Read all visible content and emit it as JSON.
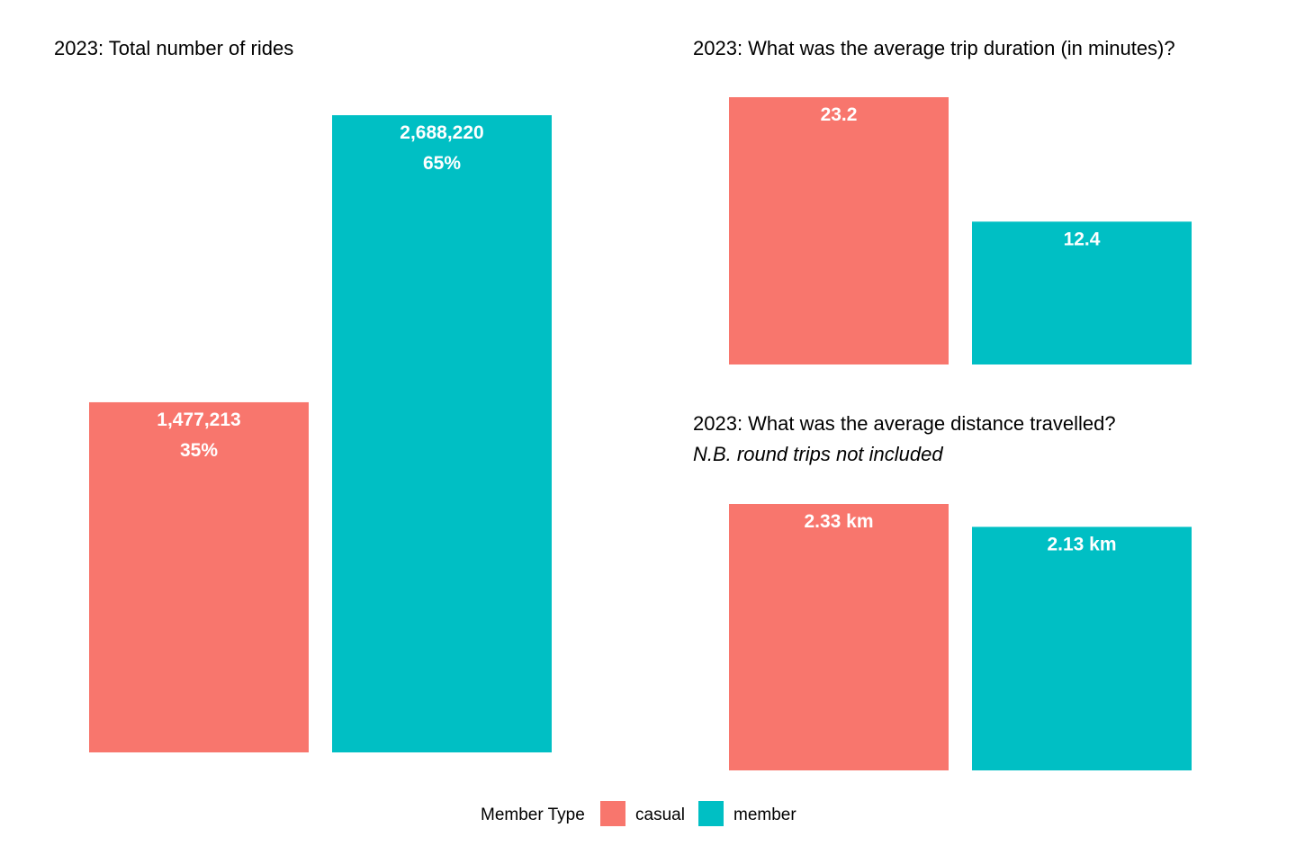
{
  "colors": {
    "casual": "#F8766D",
    "member": "#00BFC4"
  },
  "legend": {
    "title": "Member Type",
    "items": [
      {
        "name": "casual",
        "color": "#F8766D"
      },
      {
        "name": "member",
        "color": "#00BFC4"
      }
    ]
  },
  "chart_data": [
    {
      "type": "bar",
      "title": "2023: Total number of rides",
      "subtitle": "",
      "categories": [
        "casual",
        "member"
      ],
      "values": [
        1477213,
        2688220
      ],
      "labels": [
        [
          "1,477,213",
          "35%"
        ],
        [
          "2,688,220",
          "65%"
        ]
      ],
      "ylim": [
        0,
        2688220
      ],
      "grid": false,
      "xlabel": "",
      "ylabel": ""
    },
    {
      "type": "bar",
      "title": "2023: What was the average trip duration (in minutes)?",
      "subtitle": "",
      "categories": [
        "casual",
        "member"
      ],
      "values": [
        23.2,
        12.4
      ],
      "labels": [
        [
          "23.2"
        ],
        [
          "12.4"
        ]
      ],
      "ylim": [
        0,
        23.2
      ],
      "grid": false,
      "xlabel": "",
      "ylabel": ""
    },
    {
      "type": "bar",
      "title": "2023: What was the average distance travelled?",
      "subtitle": "N.B. round trips not included",
      "categories": [
        "casual",
        "member"
      ],
      "values": [
        2.33,
        2.13
      ],
      "labels": [
        [
          "2.33 km"
        ],
        [
          "2.13 km"
        ]
      ],
      "ylim": [
        0,
        2.33
      ],
      "grid": false,
      "xlabel": "",
      "ylabel": ""
    }
  ]
}
